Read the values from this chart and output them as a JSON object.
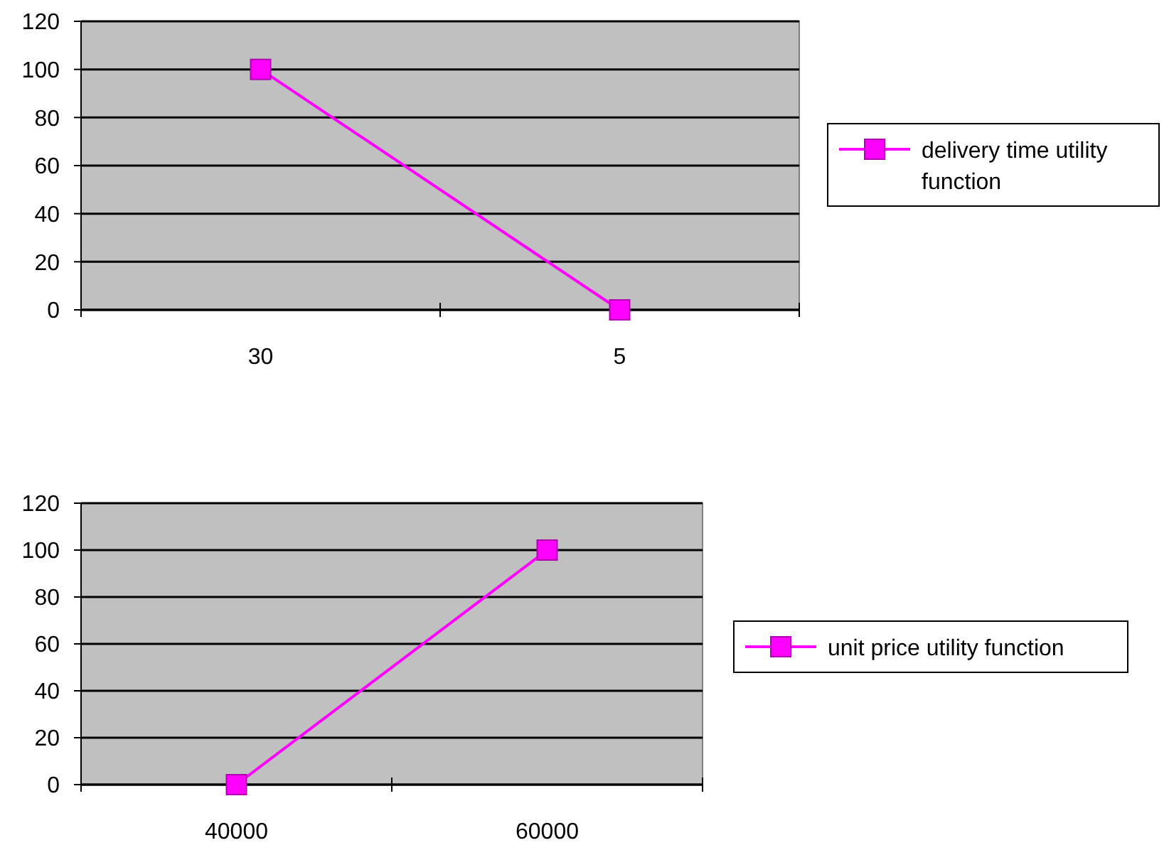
{
  "chart_data": [
    {
      "type": "line",
      "categories": [
        "30",
        "5"
      ],
      "series": [
        {
          "name": "delivery time utility function",
          "color": "#ff00ff",
          "values": [
            100,
            0
          ]
        }
      ],
      "ylim": [
        0,
        120
      ],
      "yticks": [
        0,
        20,
        40,
        60,
        80,
        100,
        120
      ],
      "grid": "y",
      "legend": "right",
      "marker": "square",
      "line_style": "solid"
    },
    {
      "type": "line",
      "categories": [
        "40000",
        "60000"
      ],
      "series": [
        {
          "name": "unit price utility function",
          "color": "#ff00ff",
          "values": [
            0,
            100
          ]
        }
      ],
      "ylim": [
        0,
        120
      ],
      "yticks": [
        0,
        20,
        40,
        60,
        80,
        100,
        120
      ],
      "grid": "y",
      "legend": "right",
      "marker": "square",
      "line_style": "solid"
    }
  ]
}
